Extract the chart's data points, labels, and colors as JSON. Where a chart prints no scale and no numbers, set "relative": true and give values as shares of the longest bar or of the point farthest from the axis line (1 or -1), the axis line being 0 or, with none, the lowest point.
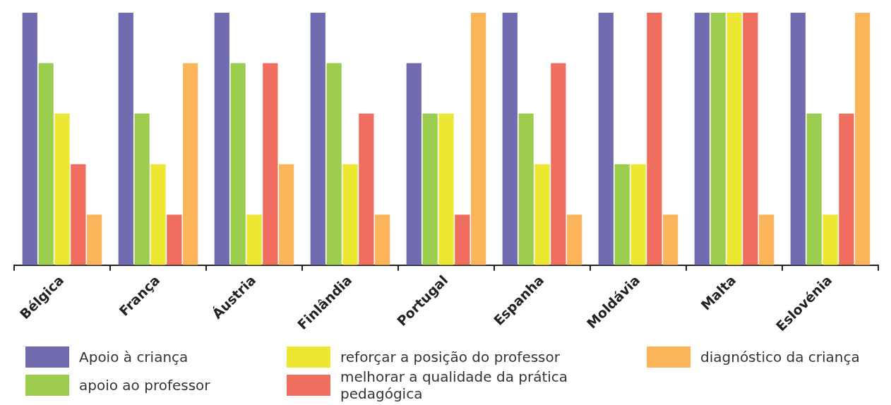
{
  "chart_data": {
    "type": "bar",
    "relative": true,
    "legend": "bottom",
    "categories": [
      "Bélgica",
      "França",
      "Áustria",
      "Finlândia",
      "Portugal",
      "Espanha",
      "Moldávia",
      "Malta",
      "Eslovénia"
    ],
    "series": [
      {
        "name": "Apoio à criança",
        "color": "#716bb0",
        "values": [
          1,
          1,
          1,
          1,
          0.8,
          1,
          1,
          1,
          1
        ]
      },
      {
        "name": "apoio ao professor",
        "color": "#9ccd4f",
        "values": [
          0.8,
          0.6,
          0.8,
          0.8,
          0.6,
          0.6,
          0.4,
          1,
          0.6
        ]
      },
      {
        "name": "reforçar a posição do professor",
        "color": "#ede734",
        "values": [
          0.6,
          0.4,
          0.2,
          0.4,
          0.6,
          0.4,
          0.4,
          1,
          0.2
        ]
      },
      {
        "name": "melhorar a qualidade da prática pedagógica",
        "color": "#f06e60",
        "values": [
          0.4,
          0.2,
          0.8,
          0.6,
          0.2,
          0.8,
          1,
          1,
          0.6
        ]
      },
      {
        "name": "diagnóstico da criança",
        "color": "#fbb45a",
        "values": [
          0.2,
          0.8,
          0.4,
          0.2,
          1,
          0.2,
          0.2,
          0.2,
          1
        ]
      }
    ]
  }
}
